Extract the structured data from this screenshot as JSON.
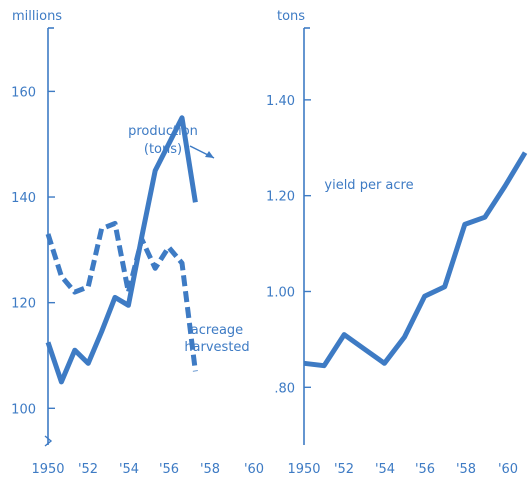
{
  "colors": {
    "ink": "#3e7bc4"
  },
  "chart_data": [
    {
      "type": "line",
      "title": "",
      "ylabel": "millions",
      "xlabel": "",
      "x": [
        1950,
        1951,
        1952,
        1953,
        1954,
        1955,
        1956,
        1957,
        1958,
        1959,
        1960,
        1961
      ],
      "x_tick_labels": [
        "1950",
        "'52",
        "'54",
        "'56",
        "'58",
        "'60"
      ],
      "y_tick_labels": [
        "100",
        "120",
        "140",
        "160"
      ],
      "ylim": [
        94,
        172
      ],
      "grid": false,
      "series": [
        {
          "name": "production (tons)",
          "style": "solid",
          "values": [
            112.5,
            105,
            111,
            108.5,
            114.5,
            121,
            119.5,
            132.5,
            145,
            150,
            155,
            139
          ]
        },
        {
          "name": "acreage harvested",
          "style": "dashed",
          "values": [
            133,
            125,
            122,
            123,
            134,
            135,
            122,
            132,
            126.5,
            130.5,
            127.5,
            107
          ]
        }
      ],
      "annotations": [
        {
          "lines": [
            "production",
            "(tons)"
          ]
        },
        {
          "lines": [
            "acreage",
            "harvested"
          ]
        }
      ]
    },
    {
      "type": "line",
      "title": "",
      "ylabel": "tons",
      "xlabel": "",
      "x": [
        1950,
        1951,
        1952,
        1953,
        1954,
        1955,
        1956,
        1957,
        1958,
        1959,
        1960,
        1961
      ],
      "x_tick_labels": [
        "1950",
        "'52",
        "'54",
        "'56",
        "'58",
        "'60"
      ],
      "y_tick_labels": [
        ".80",
        "1.00",
        "1.20",
        "1.40"
      ],
      "ylim": [
        0.69,
        1.55
      ],
      "grid": false,
      "series": [
        {
          "name": "yield per acre",
          "style": "solid",
          "values": [
            0.85,
            0.845,
            0.91,
            0.88,
            0.85,
            0.905,
            0.99,
            1.01,
            1.14,
            1.155,
            1.22,
            1.29
          ]
        }
      ],
      "annotations": [
        {
          "lines": [
            "yield per acre"
          ]
        }
      ]
    }
  ]
}
